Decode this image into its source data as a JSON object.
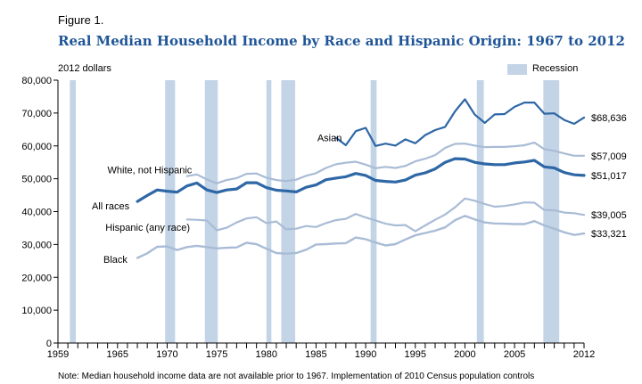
{
  "figure_label": "Figure 1.",
  "title": "Real Median Household Income by Race and Hispanic Origin: 1967 to 2012",
  "footnote": "Note: Median household income data are not available prior to 1967. Implementation of 2010 Census population controls",
  "chart_data": {
    "type": "line",
    "title": "Real Median Household Income by Race and Hispanic Origin: 1967 to 2012",
    "ylabel": "2012 dollars",
    "xlabel": "",
    "xlim": [
      1959,
      2012
    ],
    "ylim": [
      0,
      80000
    ],
    "grid": false,
    "legend": {
      "label": "Recession",
      "placement": "top-right"
    },
    "x_ticks": [
      1959,
      1965,
      1970,
      1975,
      1980,
      1985,
      1990,
      1995,
      2000,
      2005,
      2012
    ],
    "y_ticks": [
      0,
      10000,
      20000,
      30000,
      40000,
      50000,
      60000,
      70000,
      80000
    ],
    "y_tick_labels": [
      "0",
      "10,000",
      "20,000",
      "30,000",
      "40,000",
      "50,000",
      "60,000",
      "70,000",
      "80,000"
    ],
    "recessions": [
      [
        1960.2,
        1960.8
      ],
      [
        1969.8,
        1970.8
      ],
      [
        1973.8,
        1975.1
      ],
      [
        1980.0,
        1980.5
      ],
      [
        1981.5,
        1982.9
      ],
      [
        1990.5,
        1991.1
      ],
      [
        2001.2,
        2001.9
      ],
      [
        2007.9,
        2009.5
      ]
    ],
    "colors": {
      "dark": "#2e67a6",
      "light": "#a9bcd6",
      "recession": "#c3d4e6",
      "title": "#1f5597"
    },
    "series": [
      {
        "name": "Asian",
        "style": "dark",
        "label_x": 1987.6,
        "label_y": 62500,
        "label_anchor": "end",
        "end_label": "$68,636",
        "x": [
          1987,
          1988,
          1989,
          1990,
          1991,
          1992,
          1993,
          1994,
          1995,
          1996,
          1997,
          1998,
          1999,
          2000,
          2001,
          2002,
          2003,
          2004,
          2005,
          2006,
          2007,
          2008,
          2009,
          2010,
          2011,
          2012
        ],
        "y": [
          62500,
          60200,
          64500,
          65500,
          60000,
          60700,
          60100,
          62000,
          60800,
          63300,
          64800,
          65800,
          70500,
          74200,
          69500,
          67000,
          69600,
          69700,
          71900,
          73200,
          73200,
          69800,
          69900,
          67900,
          66700,
          68636
        ]
      },
      {
        "name": "White, not Hispanic",
        "style": "light",
        "label_x": 1972.5,
        "label_y": 52700,
        "label_anchor": "end",
        "end_label": "$57,009",
        "x": [
          1972,
          1973,
          1974,
          1975,
          1976,
          1977,
          1978,
          1979,
          1980,
          1981,
          1982,
          1983,
          1984,
          1985,
          1986,
          1987,
          1988,
          1989,
          1990,
          1991,
          1992,
          1993,
          1994,
          1995,
          1996,
          1997,
          1998,
          1999,
          2000,
          2001,
          2002,
          2003,
          2004,
          2005,
          2006,
          2007,
          2008,
          2009,
          2010,
          2011,
          2012
        ],
        "y": [
          50800,
          51300,
          49800,
          48600,
          49600,
          50200,
          51500,
          51600,
          50300,
          49600,
          49300,
          49700,
          50900,
          51700,
          53300,
          54400,
          54900,
          55200,
          54300,
          53200,
          53600,
          53300,
          53900,
          55300,
          56100,
          57200,
          59400,
          60600,
          60700,
          60100,
          59600,
          59700,
          59700,
          59900,
          60200,
          61000,
          59000,
          58500,
          57700,
          57000,
          57009
        ]
      },
      {
        "name": "All races",
        "style": "darkthick",
        "label_x": 1966.2,
        "label_y": 41700,
        "label_anchor": "end",
        "end_label": "$51,017",
        "x": [
          1967,
          1968,
          1969,
          1970,
          1971,
          1972,
          1973,
          1974,
          1975,
          1976,
          1977,
          1978,
          1979,
          1980,
          1981,
          1982,
          1983,
          1984,
          1985,
          1986,
          1987,
          1988,
          1989,
          1990,
          1991,
          1992,
          1993,
          1994,
          1995,
          1996,
          1997,
          1998,
          1999,
          2000,
          2001,
          2002,
          2003,
          2004,
          2005,
          2006,
          2007,
          2008,
          2009,
          2010,
          2011,
          2012
        ],
        "y": [
          43100,
          44900,
          46600,
          46200,
          45900,
          47800,
          48700,
          46600,
          45800,
          46600,
          46900,
          48800,
          48800,
          47300,
          46500,
          46300,
          46000,
          47400,
          48100,
          49700,
          50200,
          50600,
          51600,
          51000,
          49500,
          49200,
          49000,
          49600,
          51100,
          51800,
          53000,
          55000,
          56100,
          56000,
          55000,
          54500,
          54300,
          54300,
          54800,
          55100,
          55600,
          53600,
          53300,
          51900,
          51200,
          51017
        ]
      },
      {
        "name": "Hispanic (any race)",
        "style": "light",
        "label_x": 1972.3,
        "label_y": 35200,
        "label_anchor": "end",
        "end_label": "$39,005",
        "x": [
          1972,
          1973,
          1974,
          1975,
          1976,
          1977,
          1978,
          1979,
          1980,
          1981,
          1982,
          1983,
          1984,
          1985,
          1986,
          1987,
          1988,
          1989,
          1990,
          1991,
          1992,
          1993,
          1994,
          1995,
          1996,
          1997,
          1998,
          1999,
          2000,
          2001,
          2002,
          2003,
          2004,
          2005,
          2006,
          2007,
          2008,
          2009,
          2010,
          2011,
          2012
        ],
        "y": [
          37600,
          37500,
          37300,
          34300,
          35100,
          36700,
          37900,
          38300,
          36500,
          37000,
          34600,
          34800,
          35600,
          35300,
          36500,
          37400,
          37800,
          39300,
          38200,
          37300,
          36300,
          35800,
          35900,
          34000,
          35800,
          37500,
          39100,
          41300,
          44000,
          43300,
          42300,
          41500,
          41700,
          42200,
          42800,
          42700,
          40500,
          40400,
          39700,
          39500,
          39005
        ]
      },
      {
        "name": "Black",
        "style": "light2",
        "label_x": 1966.0,
        "label_y": 25500,
        "label_anchor": "end",
        "end_label": "$33,321",
        "x": [
          1967,
          1968,
          1969,
          1970,
          1971,
          1972,
          1973,
          1974,
          1975,
          1976,
          1977,
          1978,
          1979,
          1980,
          1981,
          1982,
          1983,
          1984,
          1985,
          1986,
          1987,
          1988,
          1989,
          1990,
          1991,
          1992,
          1993,
          1994,
          1995,
          1996,
          1997,
          1998,
          1999,
          2000,
          2001,
          2002,
          2003,
          2004,
          2005,
          2006,
          2007,
          2008,
          2009,
          2010,
          2011,
          2012
        ],
        "y": [
          25900,
          27300,
          29300,
          29400,
          28300,
          29200,
          29600,
          29200,
          28800,
          29000,
          29100,
          30500,
          30100,
          28700,
          27400,
          27200,
          27400,
          28400,
          30000,
          30100,
          30300,
          30400,
          32100,
          31600,
          30600,
          29700,
          30100,
          31500,
          32800,
          33500,
          34200,
          35200,
          37400,
          38700,
          37600,
          36700,
          36400,
          36300,
          36200,
          36200,
          37100,
          35800,
          34800,
          33700,
          32900,
          33321
        ]
      }
    ]
  }
}
